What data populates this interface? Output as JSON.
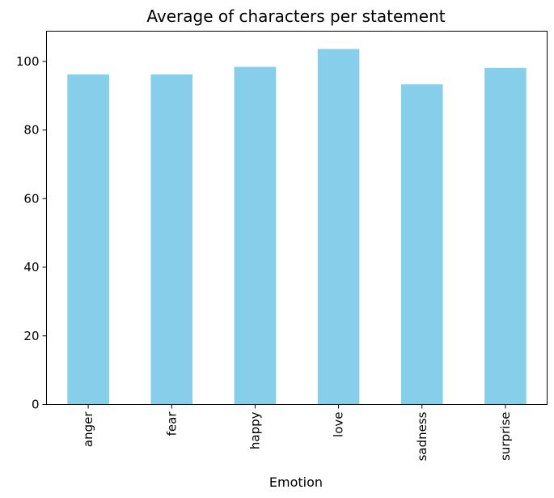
{
  "chart_data": {
    "type": "bar",
    "title": "Average of characters per statement",
    "xlabel": "Emotion",
    "ylabel": "",
    "categories": [
      "anger",
      "fear",
      "happy",
      "love",
      "sadness",
      "surprise"
    ],
    "values": [
      96.2,
      96.2,
      98.4,
      103.6,
      93.3,
      98.1
    ],
    "ylim": [
      0,
      108.8
    ],
    "yticks": [
      0,
      20,
      40,
      60,
      80,
      100
    ],
    "bar_color": "#87ceeb",
    "grid": false,
    "legend": "none"
  }
}
